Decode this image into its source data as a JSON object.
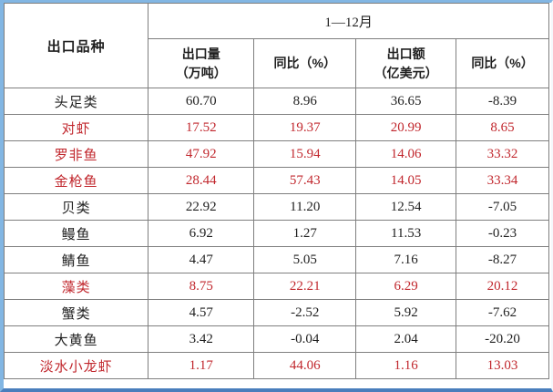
{
  "chart_data": {
    "type": "table",
    "corner_header": "出口品种",
    "period_header": "1—12月",
    "sub_headers": [
      [
        "出口量",
        "（万吨）"
      ],
      [
        "同比（%）"
      ],
      [
        "出口额",
        "（亿美元）"
      ],
      [
        "同比（%）"
      ]
    ],
    "columns": [
      "出口品种",
      "出口量（万吨）",
      "同比（%）",
      "出口额（亿美元）",
      "同比（%）"
    ],
    "rows": [
      {
        "name": "头足类",
        "values": [
          "60.70",
          "8.96",
          "36.65",
          "-8.39"
        ],
        "highlight": false
      },
      {
        "name": "对虾",
        "values": [
          "17.52",
          "19.37",
          "20.99",
          "8.65"
        ],
        "highlight": true
      },
      {
        "name": "罗非鱼",
        "values": [
          "47.92",
          "15.94",
          "14.06",
          "33.32"
        ],
        "highlight": true
      },
      {
        "name": "金枪鱼",
        "values": [
          "28.44",
          "57.43",
          "14.05",
          "33.34"
        ],
        "highlight": true
      },
      {
        "name": "贝类",
        "values": [
          "22.92",
          "11.20",
          "12.54",
          "-7.05"
        ],
        "highlight": false
      },
      {
        "name": "鳗鱼",
        "values": [
          "6.92",
          "1.27",
          "11.53",
          "-0.23"
        ],
        "highlight": false
      },
      {
        "name": "鲭鱼",
        "values": [
          "4.47",
          "5.05",
          "7.16",
          "-8.27"
        ],
        "highlight": false
      },
      {
        "name": "藻类",
        "values": [
          "8.75",
          "22.21",
          "6.29",
          "20.12"
        ],
        "highlight": true
      },
      {
        "name": "蟹类",
        "values": [
          "4.57",
          "-2.52",
          "5.92",
          "-7.62"
        ],
        "highlight": false
      },
      {
        "name": "大黄鱼",
        "values": [
          "3.42",
          "-0.04",
          "2.04",
          "-20.20"
        ],
        "highlight": false
      },
      {
        "name": "淡水小龙虾",
        "values": [
          "1.17",
          "44.06",
          "1.16",
          "13.03"
        ],
        "highlight": true
      }
    ]
  },
  "colors": {
    "highlight_text": "#c1272d",
    "normal_text": "#1f1f1f",
    "grid_line": "#7f7f7f",
    "frame_light_blue": "#82b6e3",
    "frame_bottom_blue": "#4a7ebc",
    "background": "#ffffff"
  }
}
